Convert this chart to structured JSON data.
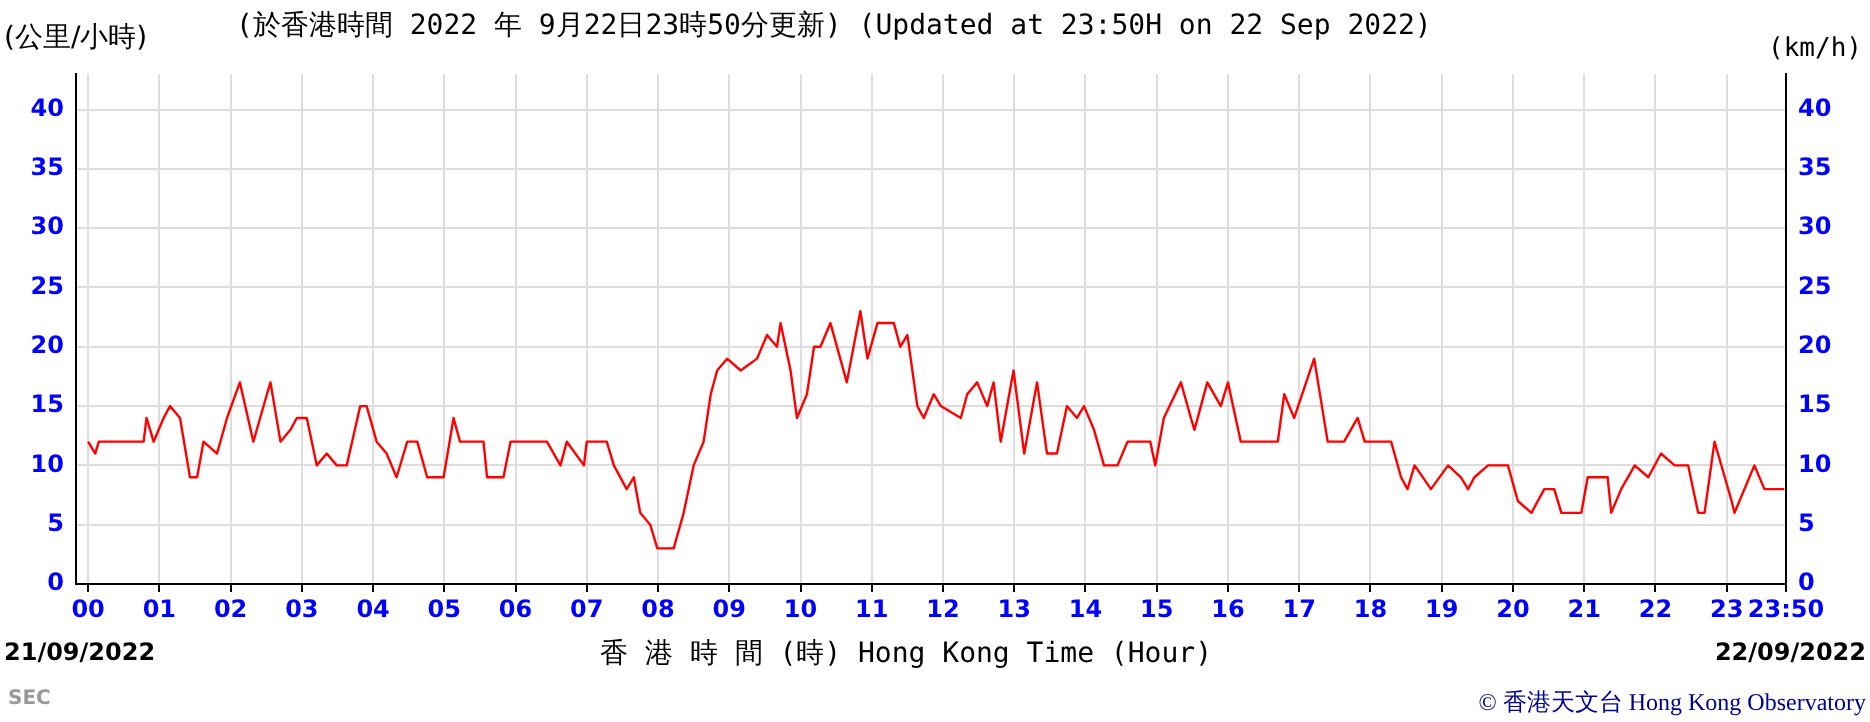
{
  "chart_data": {
    "type": "line",
    "title": "(於香港時間 2022 年 9月22日23時50分更新) (Updated at 23:50H on 22 Sep 2022)",
    "ylabel": "(公里/小時)",
    "y2label": "(km/h)",
    "xlabel": "香 港 時 間 (時)  Hong Kong Time (Hour)",
    "annotations": [
      "21/09/2022",
      "22/09/2022",
      "SEC",
      "© 香港天文台 Hong Kong Observatory"
    ],
    "x": [
      0,
      0.1,
      0.15,
      0.78,
      0.82,
      0.92,
      1.06,
      1.15,
      1.29,
      1.43,
      1.53,
      1.62,
      1.81,
      1.95,
      2.13,
      2.32,
      2.51,
      2.56,
      2.7,
      2.84,
      2.93,
      3.07,
      3.21,
      3.35,
      3.49,
      3.63,
      3.82,
      3.91,
      4.05,
      4.19,
      4.33,
      4.48,
      4.62,
      4.76,
      4.99,
      5.13,
      5.22,
      5.55,
      5.6,
      5.83,
      5.93,
      6.44,
      6.63,
      6.72,
      6.96,
      7.0,
      7.28,
      7.38,
      7.56,
      7.66,
      7.75,
      7.89,
      7.99,
      8.22,
      8.36,
      8.5,
      8.64,
      8.74,
      8.83,
      8.97,
      9.16,
      9.39,
      9.53,
      9.67,
      9.72,
      9.86,
      9.95,
      10.09,
      10.19,
      10.28,
      10.42,
      10.65,
      10.84,
      10.94,
      11.08,
      11.31,
      11.4,
      11.5,
      11.64,
      11.73,
      11.87,
      11.97,
      12.25,
      12.34,
      12.48,
      12.62,
      12.71,
      12.81,
      12.99,
      13.14,
      13.32,
      13.46,
      13.6,
      13.74,
      13.88,
      13.98,
      14.12,
      14.26,
      14.45,
      14.59,
      14.91,
      14.98,
      15.1,
      15.34,
      15.48,
      15.53,
      15.71,
      15.9,
      16.0,
      16.18,
      16.7,
      16.79,
      16.93,
      17.21,
      17.4,
      17.63,
      17.82,
      17.92,
      18.29,
      18.43,
      18.52,
      18.62,
      18.85,
      19.09,
      19.27,
      19.37,
      19.46,
      19.65,
      19.93,
      20.07,
      20.26,
      20.44,
      20.58,
      20.68,
      20.96,
      21.05,
      21.33,
      21.38,
      21.52,
      21.71,
      21.9,
      22.08,
      22.27,
      22.46,
      22.6,
      22.69,
      22.83,
      23.07,
      23.11,
      23.39,
      23.53,
      23.81,
      23.83
    ],
    "series": [
      {
        "color": "#ff0000",
        "values": [
          12,
          11,
          12,
          12,
          14,
          12,
          14,
          15,
          14,
          9,
          9,
          12,
          11,
          14,
          17,
          12,
          16,
          17,
          12,
          13,
          14,
          14,
          10,
          11,
          10,
          10,
          15,
          15,
          12,
          11,
          9,
          12,
          12,
          9,
          9,
          14,
          12,
          12,
          9,
          9,
          12,
          12,
          10,
          12,
          10,
          12,
          12,
          10,
          8,
          9,
          6,
          5,
          3,
          3,
          6,
          10,
          12,
          16,
          18,
          19,
          18,
          19,
          21,
          20,
          22,
          18,
          14,
          16,
          20,
          20,
          22,
          17,
          23,
          19,
          22,
          22,
          20,
          21,
          15,
          14,
          16,
          15,
          14,
          16,
          17,
          15,
          17,
          12,
          18,
          11,
          17,
          11,
          11,
          15,
          14,
          15,
          13,
          10,
          10,
          12,
          12,
          10,
          14,
          17,
          14,
          13,
          17,
          15,
          17,
          12,
          12,
          16,
          14,
          19,
          12,
          12,
          14,
          12,
          12,
          9,
          8,
          10,
          8,
          10,
          9,
          8,
          9,
          10,
          10,
          7,
          6,
          8,
          8,
          6,
          6,
          9,
          9,
          6,
          8,
          10,
          9,
          11,
          10,
          10,
          6,
          6,
          12,
          7,
          6,
          10,
          8,
          8,
          8
        ]
      }
    ],
    "xlim": [
      -0.17,
      23.8333
    ],
    "xticks": [
      {
        "value": 0,
        "label": "00"
      },
      {
        "value": 1,
        "label": "01"
      },
      {
        "value": 2,
        "label": "02"
      },
      {
        "value": 3,
        "label": "03"
      },
      {
        "value": 4,
        "label": "04"
      },
      {
        "value": 5,
        "label": "05"
      },
      {
        "value": 6,
        "label": "06"
      },
      {
        "value": 7,
        "label": "07"
      },
      {
        "value": 8,
        "label": "08"
      },
      {
        "value": 9,
        "label": "09"
      },
      10,
      11,
      12,
      13,
      14,
      15,
      16,
      17,
      18,
      19,
      20,
      21,
      22,
      23,
      {
        "value": 23.8333,
        "label": "23:50"
      }
    ],
    "ylim": [
      0,
      43
    ],
    "yticks": [
      0,
      5,
      10,
      15,
      20,
      25,
      30,
      35,
      40
    ],
    "y2lim": [
      0,
      43
    ],
    "y2ticks": [
      0,
      5,
      10,
      15,
      20,
      25,
      30,
      35,
      40
    ],
    "grid": true,
    "marker": "none",
    "line_style": "solid"
  }
}
